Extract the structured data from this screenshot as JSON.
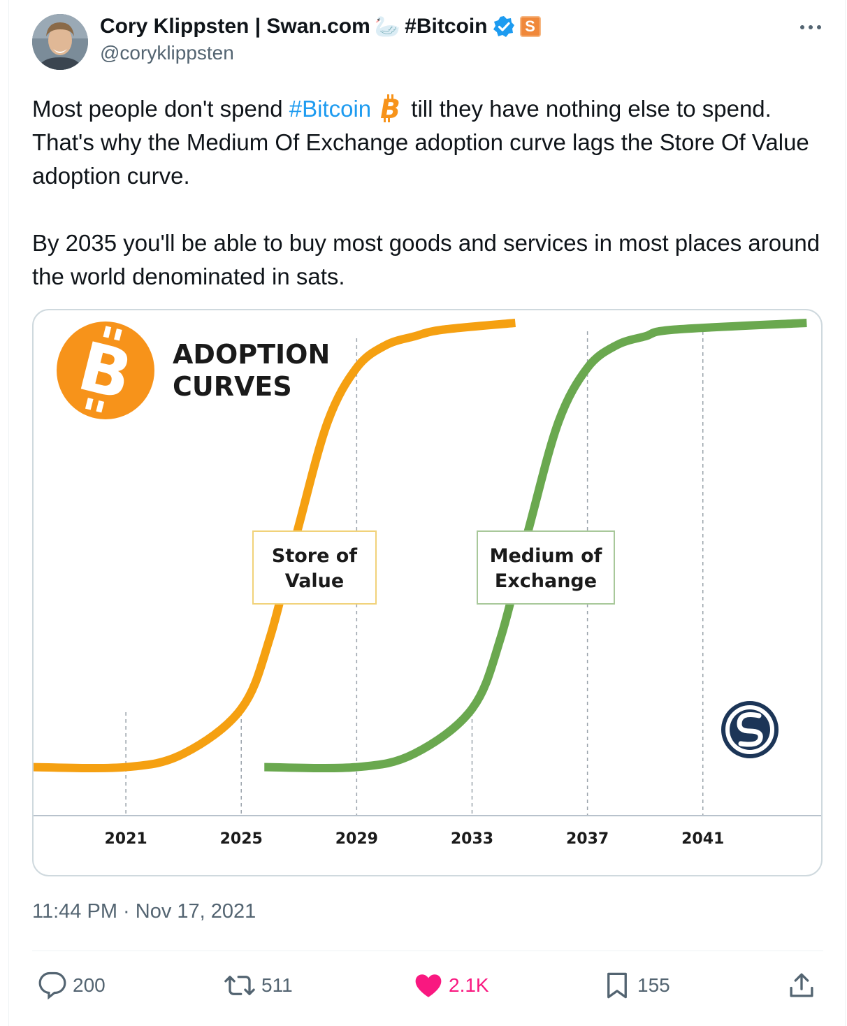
{
  "author": {
    "display_name": "Cory Klippsten | Swan.com",
    "emoji_swan": "🦢",
    "name_hashtag": "#Bitcoin",
    "handle": "@coryklippsten",
    "badge_label": "S"
  },
  "tweet": {
    "line1_before": "Most people don't spend ",
    "line1_hashtag": "#Bitcoin",
    "line1_after": " till they have nothing else to spend. That's why the Medium Of Exchange adoption curve lags the Store Of Value adoption curve.",
    "line2": "By 2035 you'll be able to buy most goods and services in most places around the world denominated in sats.",
    "timestamp": "11:44 PM · Nov 17, 2021"
  },
  "chart_data": {
    "type": "line",
    "title": "ADOPTION CURVES",
    "title_line1": "ADOPTION",
    "title_line2": "CURVES",
    "logo_glyph": "B",
    "x_ticks": [
      "2021",
      "2025",
      "2029",
      "2033",
      "2037",
      "2041"
    ],
    "x_tick_values": [
      2021,
      2025,
      2029,
      2033,
      2037,
      2041
    ],
    "xlim": [
      2017.8,
      2045.1
    ],
    "ylim": [
      0,
      1
    ],
    "grid_dashed_verticals": [
      2021,
      2025,
      2029,
      2033,
      2037,
      2041
    ],
    "series": [
      {
        "name": "Store of Value",
        "label_line1": "Store of",
        "label_line2": "Value",
        "color": "#f5a011",
        "x": [
          2017.8,
          2021,
          2023,
          2025,
          2026,
          2027,
          2028,
          2029,
          2030,
          2031,
          2032,
          2034.5
        ],
        "y": [
          0.01,
          0.01,
          0.04,
          0.14,
          0.3,
          0.55,
          0.78,
          0.9,
          0.95,
          0.97,
          0.985,
          1.0
        ]
      },
      {
        "name": "Medium of Exchange",
        "label_line1": "Medium of",
        "label_line2": "Exchange",
        "color": "#6aa84f",
        "x": [
          2025.8,
          2029,
          2031,
          2033,
          2034,
          2035,
          2036,
          2037,
          2038,
          2039,
          2040,
          2044.6
        ],
        "y": [
          0.01,
          0.01,
          0.04,
          0.14,
          0.3,
          0.55,
          0.78,
          0.9,
          0.95,
          0.97,
          0.985,
          1.0
        ]
      }
    ],
    "accent_colors": {
      "bitcoin_orange": "#f7931a",
      "swan_navy": "#1c3557"
    }
  },
  "actions": {
    "replies": "200",
    "retweets": "511",
    "likes": "2.1K",
    "bookmarks": "155"
  },
  "icons": [
    "reply-icon",
    "retweet-icon",
    "heart-icon",
    "bookmark-icon",
    "share-icon",
    "verified-icon",
    "more-icon"
  ]
}
